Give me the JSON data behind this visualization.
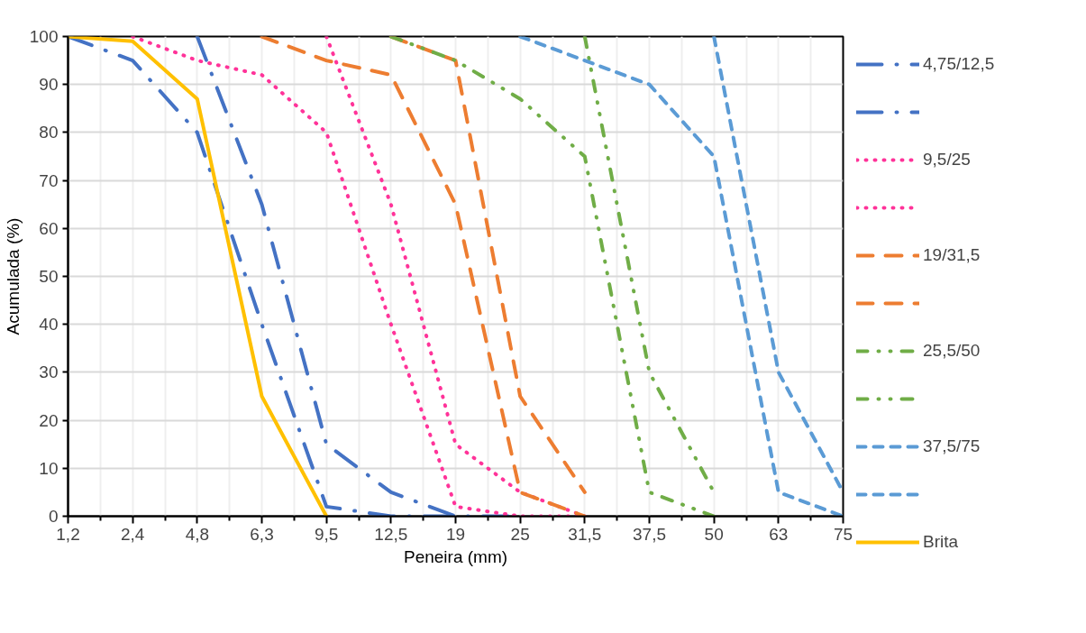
{
  "chart_data": {
    "type": "line",
    "xlabel": "Peneira (mm)",
    "ylabel": "Acumulada (%)",
    "categories": [
      "1,2",
      "2,4",
      "4,8",
      "6,3",
      "9,5",
      "12,5",
      "19",
      "25",
      "31,5",
      "37,5",
      "50",
      "63",
      "75"
    ],
    "ylim": [
      0,
      100
    ],
    "yticks": [
      0,
      10,
      20,
      30,
      40,
      50,
      60,
      70,
      80,
      90,
      100
    ],
    "grid": true,
    "legend": "right",
    "series": [
      {
        "name": "4,75/12,5",
        "color": "#4472c4",
        "line_style": "dashdot",
        "values": [
          100,
          95,
          80,
          40,
          2,
          0,
          0,
          null,
          null,
          null,
          null,
          null,
          null
        ]
      },
      {
        "color": "#4472c4",
        "line_style": "dashdot",
        "values": [
          null,
          null,
          100,
          65,
          15,
          5,
          0,
          0,
          null,
          null,
          null,
          null,
          null
        ]
      },
      {
        "name": "9,5/25",
        "color": "#ff3399",
        "line_style": "dotted",
        "values": [
          null,
          100,
          95,
          92,
          80,
          40,
          2,
          0,
          0,
          null,
          null,
          null,
          null
        ]
      },
      {
        "color": "#ff3399",
        "line_style": "dotted",
        "values": [
          null,
          null,
          null,
          null,
          100,
          65,
          15,
          5,
          0,
          null,
          null,
          null,
          null
        ]
      },
      {
        "name": "19/31,5",
        "color": "#ed7d31",
        "line_style": "dashed",
        "values": [
          null,
          null,
          null,
          100,
          95,
          92,
          65,
          5,
          0,
          null,
          null,
          null,
          null
        ]
      },
      {
        "color": "#ed7d31",
        "line_style": "dashed",
        "values": [
          null,
          null,
          null,
          null,
          null,
          100,
          95,
          25,
          5,
          null,
          null,
          null,
          null
        ]
      },
      {
        "name": "25,5/50",
        "color": "#70ad47",
        "line_style": "dashdotdot",
        "values": [
          null,
          null,
          null,
          null,
          null,
          100,
          95,
          87,
          75,
          5,
          0,
          null,
          null
        ]
      },
      {
        "color": "#70ad47",
        "line_style": "dashdotdot",
        "values": [
          null,
          null,
          null,
          null,
          null,
          null,
          null,
          null,
          100,
          30,
          5,
          null,
          null
        ]
      },
      {
        "name": "37,5/75",
        "color": "#5b9bd5",
        "line_style": "shortdash",
        "values": [
          null,
          null,
          null,
          null,
          null,
          null,
          null,
          100,
          95,
          90,
          75,
          5,
          0
        ]
      },
      {
        "color": "#5b9bd5",
        "line_style": "shortdash",
        "values": [
          null,
          null,
          null,
          null,
          null,
          null,
          null,
          null,
          null,
          null,
          100,
          30,
          5
        ]
      },
      {
        "name": "Brita",
        "color": "#ffc000",
        "line_style": "solid",
        "values": [
          100,
          99,
          87,
          25,
          0,
          null,
          null,
          null,
          null,
          null,
          null,
          null,
          null
        ]
      }
    ]
  }
}
